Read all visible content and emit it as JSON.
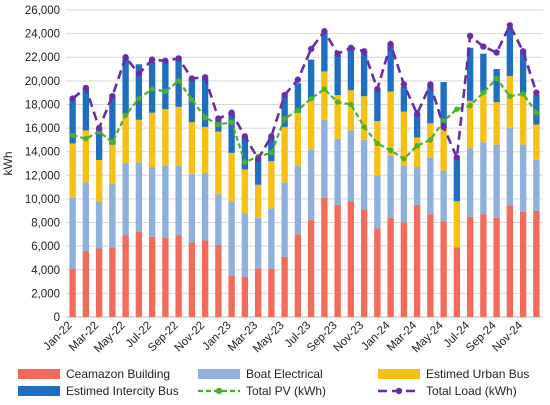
{
  "chart_data": {
    "type": "bar",
    "stacked": true,
    "ylabel": "kWh",
    "ylim": [
      0,
      26000
    ],
    "yticks": [
      0,
      2000,
      4000,
      6000,
      8000,
      10000,
      12000,
      14000,
      16000,
      18000,
      20000,
      22000,
      24000,
      26000
    ],
    "ytick_labels": [
      "0",
      "2,000",
      "4,000",
      "6,000",
      "8,000",
      "10,000",
      "12,000",
      "14,000",
      "16,000",
      "18,000",
      "20,000",
      "22,000",
      "24,000",
      "26,000"
    ],
    "grid": true,
    "legend_position": "bottom",
    "categories": [
      "Jan-22",
      "Feb-22",
      "Mar-22",
      "Apr-22",
      "May-22",
      "Jun-22",
      "Jul-22",
      "Aug-22",
      "Sep-22",
      "Oct-22",
      "Nov-22",
      "Dec-22",
      "Jan-23",
      "Feb-23",
      "Mar-23",
      "Apr-23",
      "May-23",
      "Jun-23",
      "Jul-23",
      "Aug-23",
      "Sep-23",
      "Oct-23",
      "Nov-23",
      "Dec-23",
      "Jan-24",
      "Feb-24",
      "Mar-24",
      "Apr-24",
      "May-24",
      "Jun-24",
      "Jul-24",
      "Aug-24",
      "Sep-24",
      "Oct-24",
      "Nov-24",
      "Dec-24"
    ],
    "x_tick_labels": [
      "Jan-22",
      "Mar-22",
      "May-22",
      "Jul-22",
      "Sep-22",
      "Nov-22",
      "Jan-23",
      "Mar-23",
      "May-23",
      "Jul-23",
      "Sep-23",
      "Nov-23",
      "Jan-24",
      "Mar-24",
      "May-24",
      "Jul-24",
      "Sep-24",
      "Nov-24"
    ],
    "series": [
      {
        "name": "Ceamazon Building",
        "kind": "bar",
        "color": "#F26B5B",
        "values": [
          4100,
          5600,
          5800,
          5900,
          6900,
          7200,
          6800,
          6700,
          6900,
          6300,
          6500,
          6100,
          3500,
          3400,
          4100,
          4100,
          5100,
          7000,
          8200,
          10100,
          9500,
          9800,
          9100,
          7500,
          8400,
          8000,
          9500,
          8700,
          8100,
          5900,
          8500,
          8700,
          8400,
          9400,
          8900,
          9000
        ]
      },
      {
        "name": "Boat Electrical",
        "kind": "bar",
        "color": "#8EB0DC",
        "values": [
          6000,
          5800,
          4000,
          5400,
          6100,
          5900,
          5900,
          6100,
          5900,
          5800,
          5700,
          4300,
          6300,
          5400,
          4300,
          5100,
          6300,
          5800,
          6000,
          6600,
          5600,
          6000,
          5900,
          4500,
          5300,
          4800,
          3200,
          4800,
          4300,
          0,
          5800,
          6100,
          6200,
          6600,
          5700,
          4300
        ]
      },
      {
        "name": "Estimed Urban Bus",
        "kind": "bar",
        "color": "#F6C114",
        "values": [
          4600,
          4400,
          3500,
          3300,
          4200,
          3600,
          4600,
          4800,
          5000,
          4400,
          3900,
          5300,
          4100,
          3700,
          2800,
          4000,
          4700,
          4500,
          4200,
          4100,
          3700,
          3400,
          3700,
          4600,
          5400,
          4600,
          2500,
          2900,
          3800,
          3900,
          4000,
          4200,
          3600,
          4400,
          4400,
          3000
        ]
      },
      {
        "name": "Estimed Intercity Bus",
        "kind": "bar",
        "color": "#1F6FC1",
        "values": [
          3700,
          3600,
          2600,
          4000,
          4700,
          4700,
          4300,
          4100,
          4000,
          3600,
          4100,
          1000,
          3400,
          2800,
          2100,
          2000,
          2600,
          2500,
          3400,
          3300,
          3400,
          3500,
          3800,
          2700,
          3900,
          2100,
          2000,
          3300,
          3700,
          3600,
          4500,
          3300,
          2800,
          4100,
          3400,
          2500
        ]
      },
      {
        "name": "Total PV (kWh)",
        "kind": "line",
        "color": "#4CB02B",
        "values": [
          15400,
          15100,
          15700,
          14800,
          17100,
          18500,
          19300,
          19100,
          20000,
          18400,
          16900,
          16300,
          16500,
          13100,
          13600,
          13900,
          16800,
          17500,
          18500,
          19300,
          18200,
          18000,
          16100,
          14700,
          14100,
          13400,
          14500,
          15000,
          16600,
          17600,
          17900,
          19000,
          20200,
          18700,
          18900,
          17300
        ]
      },
      {
        "name": "Total Load (kWh)",
        "kind": "line",
        "color": "#6A2DA8",
        "values": [
          18500,
          19400,
          16000,
          18700,
          22000,
          20600,
          21800,
          21700,
          21900,
          20200,
          20300,
          16800,
          17300,
          15300,
          13400,
          15300,
          18800,
          20100,
          22700,
          24200,
          22300,
          22800,
          22500,
          19300,
          23100,
          19700,
          17200,
          19700,
          16100,
          13500,
          23800,
          22900,
          22400,
          24700,
          22500,
          19000
        ]
      }
    ]
  }
}
